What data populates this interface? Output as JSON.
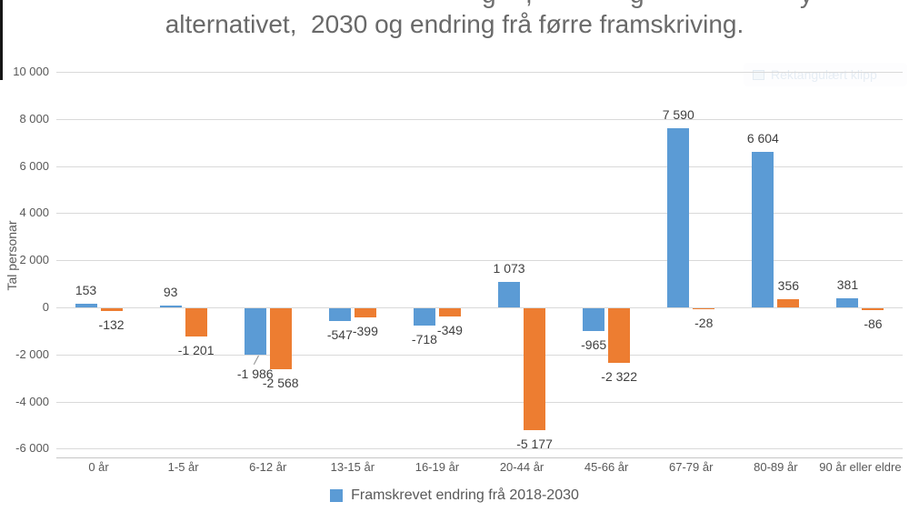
{
  "title": {
    "clipped_line_fragments": [
      "g",
      ",",
      "g",
      "y"
    ],
    "line2": "alternativet,  2030 og endring frå førre framskriving."
  },
  "watermark": "Rektangulært klipp",
  "y_axis_title": "Tal personar",
  "colors": {
    "series_blue": "#5B9BD5",
    "series_orange": "#ED7D31",
    "gridline": "#d9d9d9",
    "text_gray": "#595959"
  },
  "chart_data": {
    "type": "bar",
    "title": "alternativet,  2030 og endring frå førre framskriving.",
    "xlabel": "",
    "ylabel": "Tal personar",
    "ylim": [
      -6000,
      10000
    ],
    "grid": true,
    "legend_position": "bottom",
    "categories": [
      "0 år",
      "1-5 år",
      "6-12 år",
      "13-15 år",
      "16-19 år",
      "20-44 år",
      "45-66 år",
      "67-79 år",
      "80-89 år",
      "90 år eller eldre"
    ],
    "yticks": [
      {
        "value": 10000,
        "label": "10 000"
      },
      {
        "value": 8000,
        "label": "8 000"
      },
      {
        "value": 6000,
        "label": "6 000"
      },
      {
        "value": 4000,
        "label": "4 000"
      },
      {
        "value": 2000,
        "label": "2 000"
      },
      {
        "value": 0,
        "label": "0"
      },
      {
        "value": -2000,
        "label": "-2 000"
      },
      {
        "value": -4000,
        "label": "-4 000"
      },
      {
        "value": -6000,
        "label": "-6 000"
      }
    ],
    "series": [
      {
        "name": "Framskrevet endring frå 2018-2030",
        "color": "#5B9BD5",
        "values": [
          153,
          93,
          -1986,
          -547,
          -718,
          1073,
          -965,
          7590,
          6604,
          381
        ],
        "labels": [
          "153",
          "93",
          "-1 986",
          "-547",
          "-718",
          "1 073",
          "-965",
          "7 590",
          "6 604",
          "381"
        ]
      },
      {
        "name": "",
        "color": "#ED7D31",
        "values": [
          -132,
          -1201,
          -2568,
          -399,
          -349,
          -5177,
          -2322,
          -28,
          356,
          -86
        ],
        "labels": [
          "-132",
          "-1 201",
          "-2 568",
          "-399",
          "-349",
          "-5 177",
          "-2 322",
          "-28",
          "356",
          "-86"
        ]
      }
    ]
  },
  "legend": {
    "items": [
      {
        "label": "Framskrevet endring frå 2018-2030",
        "color": "#5B9BD5"
      }
    ]
  }
}
